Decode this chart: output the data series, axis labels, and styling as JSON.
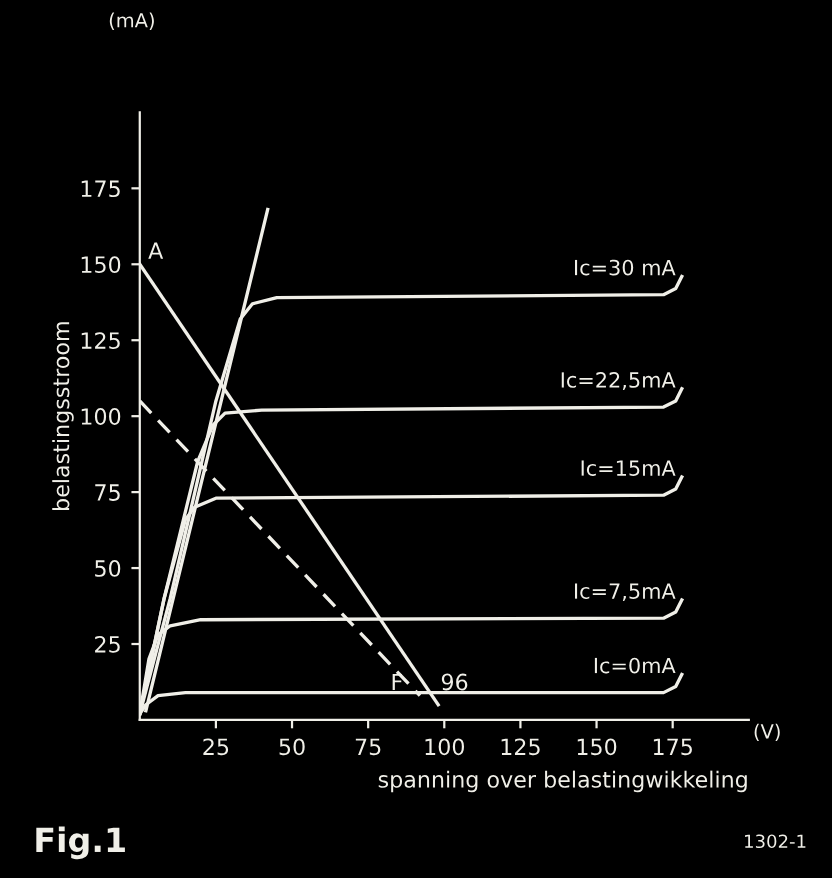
{
  "chart_data": {
    "type": "line",
    "xlabel": "spanning over belastingwikkeling",
    "ylabel": "belastingsstroom",
    "xlim": [
      0,
      200
    ],
    "ylim": [
      0,
      200
    ],
    "xticks": [
      25,
      50,
      75,
      100,
      125,
      150,
      175
    ],
    "yticks": [
      25,
      50,
      75,
      100,
      125,
      150,
      175
    ],
    "grid": false,
    "legend": false,
    "series": [
      {
        "name": "Ic=30 mA",
        "color": "#f0efe8",
        "x": [
          0,
          10,
          25,
          33,
          37,
          45,
          172,
          176,
          178
        ],
        "values": [
          2,
          40,
          105,
          132,
          137,
          139,
          140,
          142,
          146
        ]
      },
      {
        "name": "Ic=22,5mA",
        "color": "#f0efe8",
        "x": [
          0,
          8,
          19,
          24,
          28,
          40,
          172,
          176,
          178
        ],
        "values": [
          2,
          40,
          85,
          97,
          101,
          102,
          103,
          105,
          109
        ]
      },
      {
        "name": "Ic=15mA",
        "color": "#f0efe8",
        "x": [
          0,
          8,
          15,
          18,
          25,
          172,
          176,
          178
        ],
        "values": [
          2,
          40,
          66,
          70,
          73,
          74,
          76,
          80
        ]
      },
      {
        "name": "Ic=7,5mA",
        "color": "#f0efe8",
        "x": [
          0,
          3,
          6,
          10,
          20,
          172,
          176,
          178
        ],
        "values": [
          2,
          20,
          28,
          31,
          33,
          33.5,
          35.5,
          39.5
        ]
      },
      {
        "name": "Ic=0mA",
        "color": "#f0efe8",
        "x": [
          0,
          2,
          6,
          15,
          172,
          176,
          178
        ],
        "values": [
          2,
          5,
          8,
          9,
          9,
          11,
          15
        ]
      },
      {
        "color": "#f0efe8",
        "x": [
          2,
          42
        ],
        "values": [
          3,
          168
        ]
      },
      {
        "color": "#f0efe8",
        "x": [
          0,
          98
        ],
        "values": [
          150,
          5
        ]
      },
      {
        "color": "#f0efe8",
        "line_style": "dashed",
        "x": [
          0,
          92
        ],
        "values": [
          105,
          8
        ]
      }
    ],
    "annotations": [
      {
        "text": "A",
        "x": 0,
        "y": 150
      },
      {
        "text": "F",
        "x": 92,
        "y": 8
      },
      {
        "text": "96",
        "x": 96,
        "y": 8
      },
      "(mA)",
      "(V)",
      "Fig.1",
      "1302-1"
    ]
  }
}
